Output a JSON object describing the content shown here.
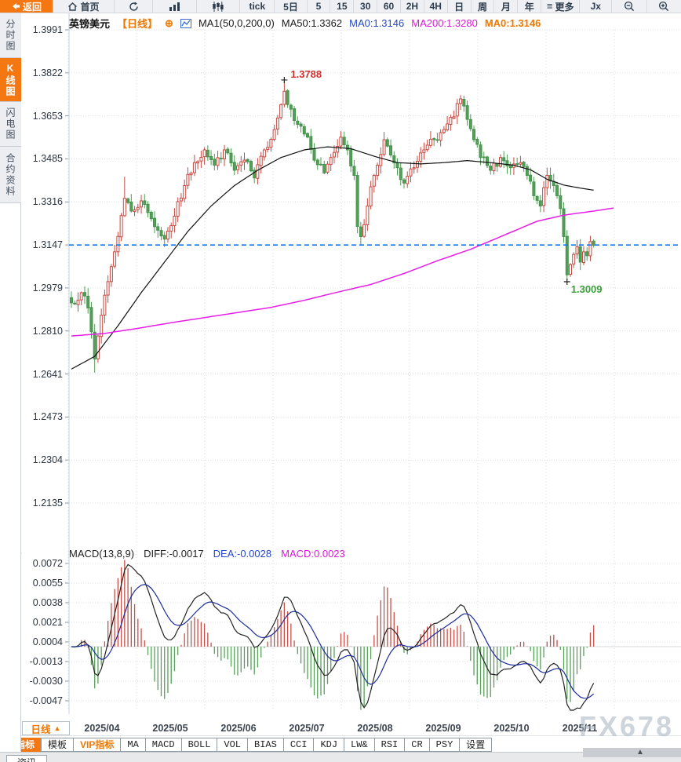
{
  "toolbar": {
    "back": "返回",
    "home": "首页",
    "tick": "tick",
    "d5": "5日",
    "intervals": [
      "5",
      "15",
      "30",
      "60",
      "2H",
      "4H",
      "日",
      "周",
      "月",
      "年"
    ],
    "more": "更多",
    "fx": "Jx"
  },
  "sidebar": {
    "items": [
      {
        "label": "分时图",
        "active": false
      },
      {
        "label": "K线图",
        "active": true
      },
      {
        "label": "闪电图",
        "active": false
      },
      {
        "label": "合约资料",
        "active": false
      }
    ]
  },
  "chart_header": {
    "symbol": "英镑美元",
    "period": "【日线】",
    "expand": "⊕",
    "ma_param": "MA1(50,0,200,0)",
    "ma50": "MA50:1.3362",
    "ma0_blue": "MA0:1.3146",
    "ma200": "MA200:1.3280",
    "ma0_orange": "MA0:1.3146"
  },
  "macd_header": {
    "title": "MACD(13,8,9)",
    "diff": "DIFF:-0.0017",
    "dea": "DEA:-0.0028",
    "macd": "MACD:0.0023"
  },
  "annotations": {
    "high": "1.3788",
    "low": "1.3009"
  },
  "price_axis": [
    "1.3991",
    "1.3822",
    "1.3653",
    "1.3485",
    "1.3316",
    "1.3147",
    "1.2979",
    "1.2810",
    "1.2641",
    "1.2473",
    "1.2304",
    "1.2135"
  ],
  "macd_axis": [
    "0.0072",
    "0.0055",
    "0.0038",
    "0.0021",
    "0.0004",
    "-0.0013",
    "-0.0030",
    "-0.0047"
  ],
  "x_labels": [
    "2025/04",
    "2025/05",
    "2025/06",
    "2025/07",
    "2025/08",
    "2025/09",
    "2025/10",
    "2025/11"
  ],
  "period_selector": {
    "label": "日线",
    "arrow": "▲"
  },
  "tabs": [
    {
      "label": "指标"
    },
    {
      "label": "模板"
    },
    {
      "label": "VIP指标"
    },
    {
      "label": "MA"
    },
    {
      "label": "MACD"
    },
    {
      "label": "BOLL"
    },
    {
      "label": "VOL"
    },
    {
      "label": "BIAS"
    },
    {
      "label": "CCI"
    },
    {
      "label": "KDJ"
    },
    {
      "label": "LW&"
    },
    {
      "label": "RSI"
    },
    {
      "label": "CR"
    },
    {
      "label": "PSY"
    },
    {
      "label": "设置"
    }
  ],
  "news_tab": "资讯",
  "watermark": "FX678",
  "colors": {
    "accent_orange": "#f57712",
    "candle_up": "#c94840",
    "candle_down": "#55a058",
    "ma50": "#111111",
    "ma200": "#e81ee8",
    "current_price_line": "#1877e5",
    "diff_line": "#222222",
    "dea_line": "#1b2b9b",
    "annotation_high": "#d03030",
    "annotation_low": "#3aa03a"
  },
  "chart_data": {
    "type": "candlestick",
    "symbol": "英镑美元 (GBP/USD)",
    "interval": "日线",
    "x_labels": [
      "2025/04",
      "2025/05",
      "2025/06",
      "2025/07",
      "2025/08",
      "2025/09",
      "2025/10",
      "2025/11"
    ],
    "price_ticks": [
      1.3991,
      1.3822,
      1.3653,
      1.3485,
      1.3316,
      1.3147,
      1.2979,
      1.281,
      1.2641,
      1.2473,
      1.2304,
      1.2135
    ],
    "session_high": 1.3788,
    "session_low": 1.3009,
    "april_low": 1.2646,
    "may_high": 1.3415,
    "current_price": 1.3147,
    "last_close": 1.3146,
    "candles_count": 158,
    "ma": {
      "ma50_last": 1.3362,
      "ma200_last": 1.328
    },
    "macd": {
      "params": "13,8,9",
      "diff_last": -0.0017,
      "dea_last": -0.0028,
      "bar_last": 0.0023,
      "ticks": [
        0.0072,
        0.0055,
        0.0038,
        0.0021,
        0.0004,
        -0.0013,
        -0.003,
        -0.0047
      ]
    },
    "close_waypoints": [
      [
        0,
        1.292
      ],
      [
        3,
        1.296
      ],
      [
        5,
        1.29
      ],
      [
        7,
        1.27
      ],
      [
        8,
        1.279
      ],
      [
        10,
        1.295
      ],
      [
        13,
        1.312
      ],
      [
        16,
        1.333
      ],
      [
        18,
        1.328
      ],
      [
        21,
        1.332
      ],
      [
        24,
        1.325
      ],
      [
        28,
        1.317
      ],
      [
        31,
        1.326
      ],
      [
        34,
        1.338
      ],
      [
        37,
        1.347
      ],
      [
        40,
        1.352
      ],
      [
        43,
        1.346
      ],
      [
        46,
        1.352
      ],
      [
        49,
        1.344
      ],
      [
        52,
        1.348
      ],
      [
        55,
        1.341
      ],
      [
        58,
        1.352
      ],
      [
        61,
        1.36
      ],
      [
        64,
        1.375
      ],
      [
        66,
        1.368
      ],
      [
        68,
        1.362
      ],
      [
        71,
        1.357
      ],
      [
        73,
        1.348
      ],
      [
        76,
        1.343
      ],
      [
        79,
        1.351
      ],
      [
        81,
        1.357
      ],
      [
        83,
        1.352
      ],
      [
        85,
        1.342
      ],
      [
        86,
        1.322
      ],
      [
        87,
        1.318
      ],
      [
        89,
        1.33
      ],
      [
        91,
        1.342
      ],
      [
        94,
        1.356
      ],
      [
        96,
        1.35
      ],
      [
        98,
        1.345
      ],
      [
        100,
        1.339
      ],
      [
        103,
        1.345
      ],
      [
        106,
        1.352
      ],
      [
        109,
        1.356
      ],
      [
        112,
        1.36
      ],
      [
        115,
        1.365
      ],
      [
        117,
        1.372
      ],
      [
        119,
        1.364
      ],
      [
        121,
        1.356
      ],
      [
        123,
        1.349
      ],
      [
        126,
        1.344
      ],
      [
        129,
        1.349
      ],
      [
        132,
        1.345
      ],
      [
        135,
        1.347
      ],
      [
        137,
        1.342
      ],
      [
        139,
        1.334
      ],
      [
        141,
        1.33
      ],
      [
        143,
        1.342
      ],
      [
        145,
        1.338
      ],
      [
        147,
        1.329
      ],
      [
        148,
        1.318
      ],
      [
        149,
        1.303
      ],
      [
        150,
        1.307
      ],
      [
        151,
        1.311
      ],
      [
        152,
        1.314
      ],
      [
        153,
        1.308
      ],
      [
        154,
        1.312
      ],
      [
        155,
        1.3105
      ],
      [
        156,
        1.316
      ],
      [
        157,
        1.3146
      ]
    ],
    "ma50_waypoints": [
      [
        0,
        1.266
      ],
      [
        7,
        1.271
      ],
      [
        14,
        1.283
      ],
      [
        21,
        1.296
      ],
      [
        28,
        1.308
      ],
      [
        35,
        1.32
      ],
      [
        42,
        1.33
      ],
      [
        49,
        1.338
      ],
      [
        56,
        1.344
      ],
      [
        63,
        1.349
      ],
      [
        70,
        1.352
      ],
      [
        77,
        1.3532
      ],
      [
        84,
        1.3525
      ],
      [
        91,
        1.3495
      ],
      [
        98,
        1.347
      ],
      [
        105,
        1.3465
      ],
      [
        112,
        1.347
      ],
      [
        119,
        1.3478
      ],
      [
        126,
        1.347
      ],
      [
        133,
        1.346
      ],
      [
        138,
        1.3442
      ],
      [
        143,
        1.3405
      ],
      [
        148,
        1.3382
      ],
      [
        153,
        1.337
      ],
      [
        157,
        1.3362
      ]
    ],
    "ma200_waypoints": [
      [
        0,
        1.279
      ],
      [
        10,
        1.28
      ],
      [
        20,
        1.282
      ],
      [
        30,
        1.2842
      ],
      [
        40,
        1.2862
      ],
      [
        50,
        1.2882
      ],
      [
        60,
        1.2902
      ],
      [
        70,
        1.293
      ],
      [
        80,
        1.2962
      ],
      [
        90,
        1.2992
      ],
      [
        100,
        1.3035
      ],
      [
        110,
        1.3085
      ],
      [
        120,
        1.313
      ],
      [
        130,
        1.3185
      ],
      [
        140,
        1.324
      ],
      [
        148,
        1.3264
      ],
      [
        157,
        1.328
      ],
      [
        163,
        1.3292
      ]
    ]
  }
}
